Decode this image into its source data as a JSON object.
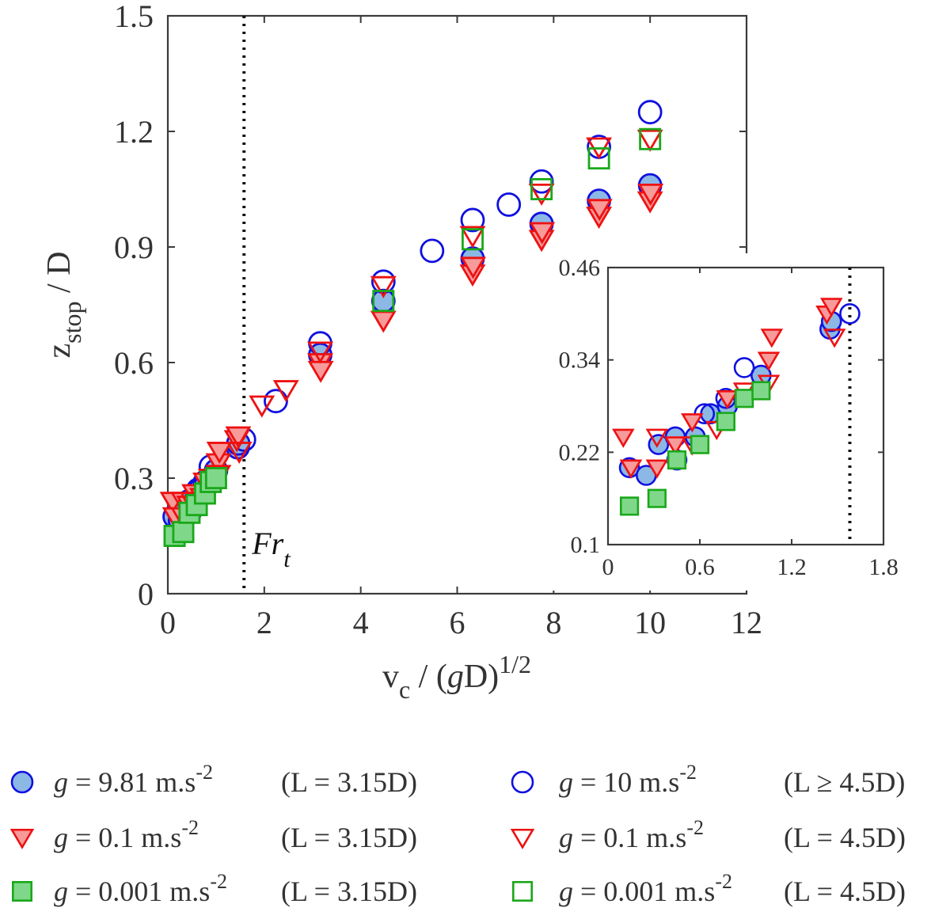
{
  "chart_data": {
    "type": "scatter",
    "title": "",
    "xlabel": {
      "base": "v",
      "sub": "c",
      "mid": " / (",
      "g": "g",
      "after": "D)",
      "sup": "1/2"
    },
    "ylabel": {
      "base": "z",
      "sub": "stop",
      "after": " / D"
    },
    "xlim": [
      0,
      12
    ],
    "ylim": [
      0,
      1.5
    ],
    "xticks": [
      0,
      2,
      4,
      6,
      8,
      10,
      12
    ],
    "yticks": [
      0,
      0.3,
      0.6,
      0.9,
      1.2,
      1.5
    ],
    "xtick_labels": [
      "0",
      "2",
      "4",
      "6",
      "8",
      "10",
      "12"
    ],
    "ytick_labels": [
      "0",
      "0.3",
      "0.6",
      "0.9",
      "1.2",
      "1.5"
    ],
    "threshold": {
      "x": 1.58,
      "label_base": "Fr",
      "label_sub": "t"
    },
    "legend_position": "below",
    "series": [
      {
        "key": "filled_circle_g9.81",
        "marker": "circle",
        "filled": true,
        "edge": "#1010e0",
        "face": "#8cb8e6",
        "legend": {
          "prefix": "g",
          "value": " = 9.81 m.s",
          "sup": "-2",
          "cond": "(L = 3.15D)"
        },
        "x": [
          0.14,
          0.25,
          0.33,
          0.44,
          0.57,
          0.67,
          0.78,
          1.0,
          1.45,
          1.46,
          3.16,
          4.47,
          6.32,
          7.75,
          8.94,
          10.0
        ],
        "y": [
          0.2,
          0.19,
          0.23,
          0.24,
          0.24,
          0.27,
          0.28,
          0.32,
          0.38,
          0.39,
          0.62,
          0.76,
          0.87,
          0.96,
          1.02,
          1.06
        ]
      },
      {
        "key": "open_circle_g10",
        "marker": "circle",
        "filled": false,
        "edge": "#1010e0",
        "face": "none",
        "legend": {
          "prefix": "g",
          "value": " = 10 m.s",
          "sup": "-2",
          "cond": "(L ≥ 4.5D)"
        },
        "x": [
          0.45,
          0.63,
          0.77,
          0.89,
          1.58,
          2.24,
          3.16,
          4.47,
          5.48,
          6.32,
          7.07,
          7.75,
          8.94,
          10.0
        ],
        "y": [
          0.21,
          0.27,
          0.29,
          0.33,
          0.4,
          0.5,
          0.65,
          0.81,
          0.89,
          0.97,
          1.01,
          1.07,
          1.16,
          1.25
        ]
      },
      {
        "key": "filled_triangle_g0.1",
        "marker": "triangle",
        "filled": true,
        "edge": "#ee1111",
        "face": "#f79a9a",
        "legend": {
          "prefix": "g",
          "value": " = 0.1 m.s",
          "sup": "-2",
          "cond": "(L = 3.15D)"
        },
        "x": [
          0.1,
          0.15,
          0.32,
          0.44,
          0.55,
          0.78,
          1.05,
          1.07,
          1.43,
          1.46,
          3.16,
          3.17,
          4.47,
          6.32,
          6.33,
          7.75,
          7.76,
          8.94,
          8.95,
          10.0,
          10.01
        ],
        "y": [
          0.24,
          0.2,
          0.2,
          0.23,
          0.26,
          0.29,
          0.34,
          0.37,
          0.4,
          0.41,
          0.6,
          0.58,
          0.71,
          0.83,
          0.85,
          0.92,
          0.94,
          0.98,
          1.0,
          1.02,
          1.04
        ]
      },
      {
        "key": "open_triangle_g0.1",
        "marker": "triangle",
        "filled": false,
        "edge": "#ee1111",
        "face": "none",
        "legend": {
          "prefix": "g",
          "value": " = 0.1 m.s",
          "sup": "-2",
          "cond": "(L = 4.5D)"
        },
        "x": [
          0.32,
          0.55,
          0.71,
          0.89,
          1.05,
          1.48,
          1.95,
          2.45,
          3.16,
          4.47,
          6.32,
          7.75,
          8.94,
          10.0
        ],
        "y": [
          0.24,
          0.23,
          0.25,
          0.3,
          0.31,
          0.37,
          0.49,
          0.53,
          0.63,
          0.8,
          0.93,
          1.04,
          1.16,
          1.18
        ]
      },
      {
        "key": "filled_square_g0.001",
        "marker": "square",
        "filled": true,
        "edge": "#1aa81a",
        "face": "#7fd88a",
        "legend": {
          "prefix": "g",
          "value": " = 0.001 m.s",
          "sup": "-2",
          "cond": "(L = 3.15D)"
        },
        "x": [
          0.14,
          0.32,
          0.45,
          0.6,
          0.77,
          0.89,
          1.0
        ],
        "y": [
          0.15,
          0.16,
          0.21,
          0.23,
          0.26,
          0.29,
          0.3
        ]
      },
      {
        "key": "open_square_g0.001",
        "marker": "square",
        "filled": false,
        "edge": "#1aa81a",
        "face": "none",
        "legend": {
          "prefix": "g",
          "value": " = 0.001 m.s",
          "sup": "-2",
          "cond": "(L = 4.5D)"
        },
        "x": [
          4.47,
          6.32,
          7.75,
          8.94,
          10.0
        ],
        "y": [
          0.76,
          0.92,
          1.05,
          1.13,
          1.18
        ]
      }
    ],
    "inset": {
      "xlim": [
        0,
        1.8
      ],
      "ylim": [
        0.1,
        0.46
      ],
      "xticks": [
        0,
        0.6,
        1.2,
        1.8
      ],
      "yticks": [
        0.1,
        0.22,
        0.34,
        0.46
      ],
      "xtick_labels": [
        "0",
        "0.6",
        "1.2",
        "1.8"
      ],
      "ytick_labels": [
        "0.1",
        "0.22",
        "0.34",
        "0.46"
      ],
      "threshold_x": 1.58
    }
  }
}
